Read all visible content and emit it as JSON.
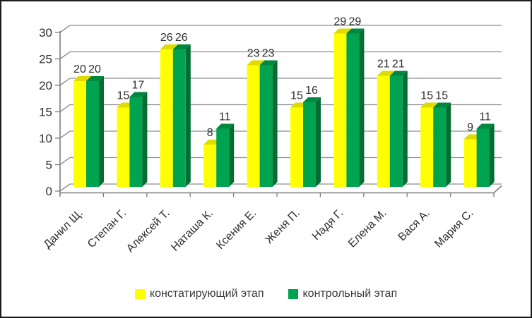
{
  "window": {
    "background": "#FFFFFF",
    "border_color": "#1C1C1C"
  },
  "chart_data": {
    "type": "bar",
    "style": "3d-clustered-column",
    "title": "",
    "xlabel": "",
    "ylabel": "",
    "categories": [
      "Данил Щ.",
      "Степан Г.",
      "Алексей Т.",
      "Наташа К.",
      "Ксения Е.",
      "Женя П.",
      "Надя Г.",
      "Елена М.",
      "Вася А.",
      "Мария С."
    ],
    "series": [
      {
        "name": "констатирующий этап",
        "values": [
          20,
          15,
          26,
          8,
          23,
          15,
          29,
          21,
          15,
          9
        ],
        "color": "#FFFF00",
        "top_color": "#DFDB00",
        "side_color": "#B8B400"
      },
      {
        "name": "контрольный этап",
        "values": [
          20,
          17,
          26,
          11,
          23,
          16,
          29,
          21,
          15,
          11
        ],
        "color": "#00A450",
        "top_color": "#00883E",
        "side_color": "#006E33"
      }
    ],
    "ylim": [
      0,
      30
    ],
    "yticks": [
      0,
      5,
      10,
      15,
      20,
      25,
      30
    ],
    "grid": true,
    "gridline_color": "#8E8E8E",
    "axis_color": "#7F7F7F",
    "text_color": "#2E2E2E",
    "data_labels": true,
    "legend_position": "bottom"
  }
}
